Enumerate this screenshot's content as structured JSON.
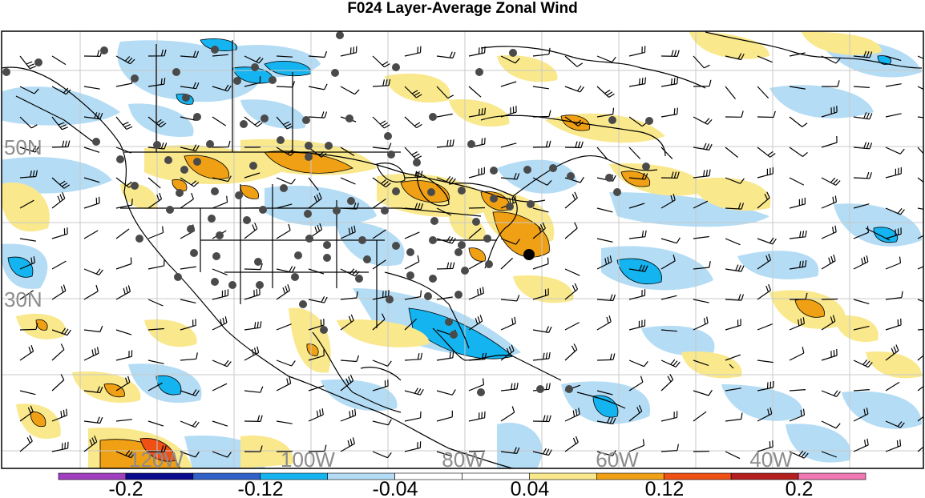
{
  "title": "F024 Layer-Average Zonal Wind",
  "lat_labels": [
    "50N",
    "30N"
  ],
  "lon_labels": [
    "120W",
    "100W",
    "80W",
    "60W",
    "40W"
  ],
  "colorbar": {
    "colors": [
      "#a040c0",
      "#0a0a8c",
      "#3060c8",
      "#14b4f0",
      "#b4dcf5",
      "#ffffff",
      "#ffffff",
      "#fae88c",
      "#f0a014",
      "#f05014",
      "#b41e1e",
      "#f078b4"
    ],
    "labels": [
      "-0.2",
      "-0.12",
      "-0.04",
      "0.04",
      "0.12",
      "0.2"
    ]
  },
  "map_colors": {
    "neg_light": "#b4dcf5",
    "neg_med": "#14b4f0",
    "pos_light": "#fae88c",
    "pos_med": "#f0a014",
    "pos_strong": "#f05014",
    "station": "#4a4a4a",
    "grid": "#c8c8c8"
  }
}
